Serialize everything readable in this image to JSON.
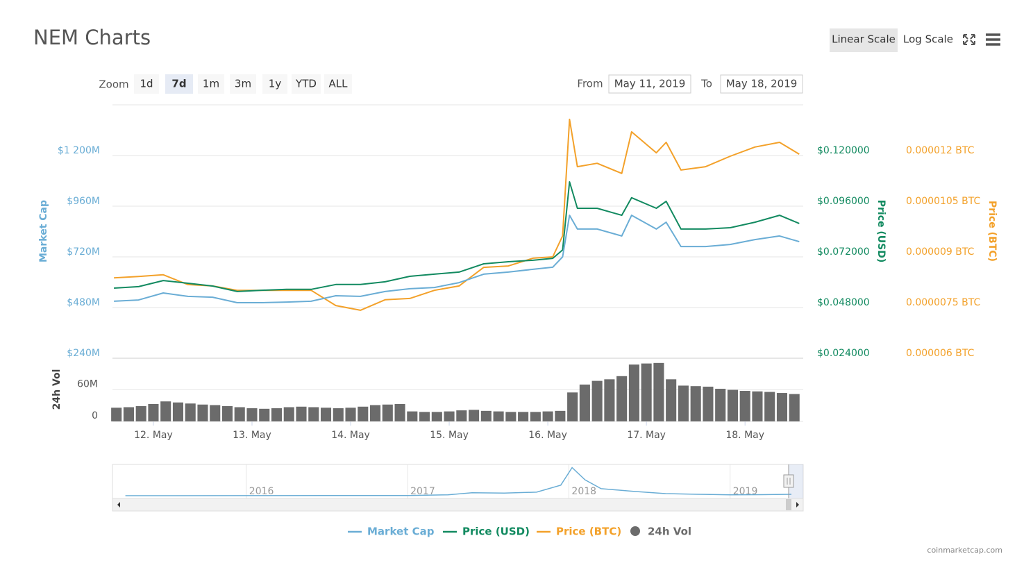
{
  "header": {
    "title": "NEM Charts",
    "scale_buttons": [
      "Linear Scale",
      "Log Scale"
    ]
  },
  "controls": {
    "zoom_label": "Zoom",
    "zoom_buttons": [
      "1d",
      "7d",
      "1m",
      "3m",
      "1y",
      "YTD",
      "ALL"
    ],
    "from_label": "From",
    "from": "May 11, 2019",
    "to_label": "To",
    "to": "May 18, 2019"
  },
  "chart_data": [
    {
      "type": "line",
      "ylabel": "Market Cap",
      "y2label": "Price (USD)",
      "y3label": "Price (BTC)",
      "x": [
        11.6,
        11.85,
        12.1,
        12.35,
        12.6,
        12.85,
        13.1,
        13.35,
        13.6,
        13.85,
        14.1,
        14.35,
        14.6,
        14.85,
        15.1,
        15.35,
        15.6,
        15.85,
        16.05,
        16.15,
        16.22,
        16.3,
        16.5,
        16.75,
        16.85,
        17.1,
        17.2,
        17.35,
        17.6,
        17.85,
        18.1,
        18.35,
        18.55
      ],
      "series": [
        {
          "name": "Market Cap",
          "color": "#6aadd5",
          "axis": "y",
          "values": [
            510,
            516,
            549,
            533,
            529,
            503,
            503,
            506,
            510,
            536,
            533,
            556,
            569,
            575,
            598,
            638,
            648,
            661,
            671,
            720,
            917,
            852,
            852,
            819,
            917,
            852,
            884,
            769,
            769,
            779,
            802,
            819,
            792
          ]
        },
        {
          "name": "Price (USD)",
          "color": "#128a60",
          "axis": "y2",
          "values": [
            0.0572,
            0.0579,
            0.0608,
            0.0595,
            0.0582,
            0.0556,
            0.0562,
            0.0566,
            0.0566,
            0.0589,
            0.0589,
            0.0602,
            0.0628,
            0.0638,
            0.0648,
            0.0687,
            0.0697,
            0.0704,
            0.0713,
            0.0753,
            0.1075,
            0.095,
            0.095,
            0.0917,
            0.1,
            0.095,
            0.0983,
            0.0852,
            0.0852,
            0.0858,
            0.0884,
            0.0917,
            0.0878
          ]
        },
        {
          "name": "Price (BTC)",
          "color": "#f3a12a",
          "axis": "y3",
          "values": [
            8.38e-06,
            8.42e-06,
            8.47e-06,
            8.18e-06,
            8.14e-06,
            8.01e-06,
            8.01e-06,
            8.01e-06,
            8.01e-06,
            7.56e-06,
            7.42e-06,
            7.73e-06,
            7.77e-06,
            8.01e-06,
            8.14e-06,
            8.69e-06,
            8.73e-06,
            8.96e-06,
            9e-06,
            9.62e-06,
            1.307e-05,
            1.167e-05,
            1.177e-05,
            1.147e-05,
            1.27e-05,
            1.208e-05,
            1.239e-05,
            1.157e-05,
            1.167e-05,
            1.198e-05,
            1.225e-05,
            1.239e-05,
            1.204e-05
          ]
        }
      ],
      "xlim": [
        11.585,
        18.59
      ],
      "xticks": [
        {
          "value": 12,
          "label": "12. May"
        },
        {
          "value": 13,
          "label": "13. May"
        },
        {
          "value": 14,
          "label": "14. May"
        },
        {
          "value": 15,
          "label": "15. May"
        },
        {
          "value": 16,
          "label": "16. May"
        },
        {
          "value": 17,
          "label": "17. May"
        },
        {
          "value": 18,
          "label": "18. May"
        }
      ],
      "ylim": [
        240,
        1440
      ],
      "yticks": [
        {
          "value": 240,
          "label": "$240M"
        },
        {
          "value": 480,
          "label": "$480M"
        },
        {
          "value": 720,
          "label": "$720M"
        },
        {
          "value": 960,
          "label": "$960M"
        },
        {
          "value": 1200,
          "label": "$1 200M"
        }
      ],
      "y2lim": [
        0.024,
        0.144
      ],
      "y2ticks": [
        {
          "value": 0.024,
          "label": "$0.024000"
        },
        {
          "value": 0.048,
          "label": "$0.048000"
        },
        {
          "value": 0.072,
          "label": "$0.072000"
        },
        {
          "value": 0.096,
          "label": "$0.096000"
        },
        {
          "value": 0.12,
          "label": "$0.120000"
        }
      ],
      "y3lim": [
        6e-06,
        1.35e-05
      ],
      "y3ticks": [
        {
          "value": 6e-06,
          "label": "0.000006 BTC"
        },
        {
          "value": 7.5e-06,
          "label": "0.0000075 BTC"
        },
        {
          "value": 9e-06,
          "label": "0.000009 BTC"
        },
        {
          "value": 1.05e-05,
          "label": "0.0000105 BTC"
        },
        {
          "value": 1.2e-05,
          "label": "0.000012 BTC"
        }
      ],
      "grid": true
    },
    {
      "type": "bar",
      "ylabel": "24h Vol",
      "x": [
        11.625,
        11.75,
        11.875,
        12,
        12.125,
        12.25,
        12.375,
        12.5,
        12.625,
        12.75,
        12.875,
        13,
        13.125,
        13.25,
        13.375,
        13.5,
        13.625,
        13.75,
        13.875,
        14,
        14.125,
        14.25,
        14.375,
        14.5,
        14.625,
        14.75,
        14.875,
        15,
        15.125,
        15.25,
        15.375,
        15.5,
        15.625,
        15.75,
        15.875,
        16,
        16.125,
        16.25,
        16.375,
        16.5,
        16.625,
        16.75,
        16.875,
        17,
        17.125,
        17.25,
        17.375,
        17.5,
        17.625,
        17.75,
        17.875,
        18,
        18.125,
        18.25,
        18.375,
        18.5
      ],
      "series": [
        {
          "name": "24h Vol",
          "color": "#6b6b6b",
          "values": [
            26,
            27,
            29,
            33,
            38,
            36,
            34,
            32,
            31,
            29,
            27,
            25,
            24,
            25,
            27,
            28,
            27,
            26,
            25,
            26,
            28,
            31,
            32,
            33,
            19,
            18,
            18,
            19,
            21,
            22,
            20,
            19,
            18,
            18,
            18,
            19,
            20,
            55,
            70,
            77,
            80,
            86,
            108,
            110,
            111,
            80,
            68,
            67,
            66,
            62,
            60,
            58,
            57,
            56,
            54,
            52
          ]
        }
      ],
      "xlim": [
        11.585,
        18.59
      ],
      "ylim": [
        0,
        120
      ],
      "yticks": [
        0,
        {
          "value": 60,
          "label": "60M"
        }
      ],
      "grid": true
    },
    {
      "type": "navigator",
      "color": "#6aadd5",
      "x": [
        2015.25,
        2015.5,
        2016,
        2016.5,
        2017,
        2017.25,
        2017.4,
        2017.6,
        2017.8,
        2017.95,
        2018.02,
        2018.1,
        2018.2,
        2018.4,
        2018.6,
        2018.8,
        2019,
        2019.2,
        2019.38
      ],
      "values": [
        5,
        5,
        30,
        60,
        80,
        500,
        1700,
        1500,
        2000,
        6000,
        16000,
        9000,
        4000,
        2500,
        1200,
        800,
        500,
        600,
        800
      ],
      "xlim": [
        2015.17,
        2019.38
      ],
      "ylim": [
        0,
        17000
      ],
      "xticks": [
        2016,
        2017,
        2018,
        2019
      ]
    }
  ],
  "footer": {
    "credit": "coinmarketcap.com"
  }
}
